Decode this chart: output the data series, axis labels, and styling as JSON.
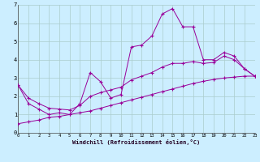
{
  "xlabel": "Windchill (Refroidissement éolien,°C)",
  "background_color": "#cceeff",
  "grid_color": "#aacccc",
  "line_color": "#990099",
  "x_values": [
    0,
    1,
    2,
    3,
    4,
    5,
    6,
    7,
    8,
    9,
    10,
    11,
    12,
    13,
    14,
    15,
    16,
    17,
    18,
    19,
    20,
    21,
    22,
    23
  ],
  "main_line": [
    2.6,
    1.6,
    1.3,
    1.0,
    1.1,
    1.0,
    1.6,
    3.3,
    2.8,
    1.9,
    2.1,
    4.7,
    4.8,
    5.3,
    6.5,
    6.8,
    5.8,
    5.8,
    4.0,
    4.0,
    4.4,
    4.2,
    3.5,
    3.1
  ],
  "upper_line": [
    2.6,
    1.9,
    1.6,
    1.35,
    1.3,
    1.25,
    1.5,
    2.0,
    2.2,
    2.35,
    2.5,
    2.9,
    3.1,
    3.3,
    3.6,
    3.8,
    3.8,
    3.9,
    3.8,
    3.85,
    4.2,
    4.0,
    3.5,
    3.1
  ],
  "lower_line": [
    0.5,
    0.6,
    0.7,
    0.85,
    0.9,
    1.0,
    1.1,
    1.2,
    1.35,
    1.5,
    1.65,
    1.8,
    1.95,
    2.1,
    2.25,
    2.4,
    2.55,
    2.7,
    2.82,
    2.92,
    3.0,
    3.05,
    3.1,
    3.1
  ],
  "ylim": [
    0,
    7
  ],
  "xlim": [
    0,
    23
  ],
  "yticks": [
    0,
    1,
    2,
    3,
    4,
    5,
    6,
    7
  ],
  "xticks": [
    0,
    1,
    2,
    3,
    4,
    5,
    6,
    7,
    8,
    9,
    10,
    11,
    12,
    13,
    14,
    15,
    16,
    17,
    18,
    19,
    20,
    21,
    22,
    23
  ]
}
